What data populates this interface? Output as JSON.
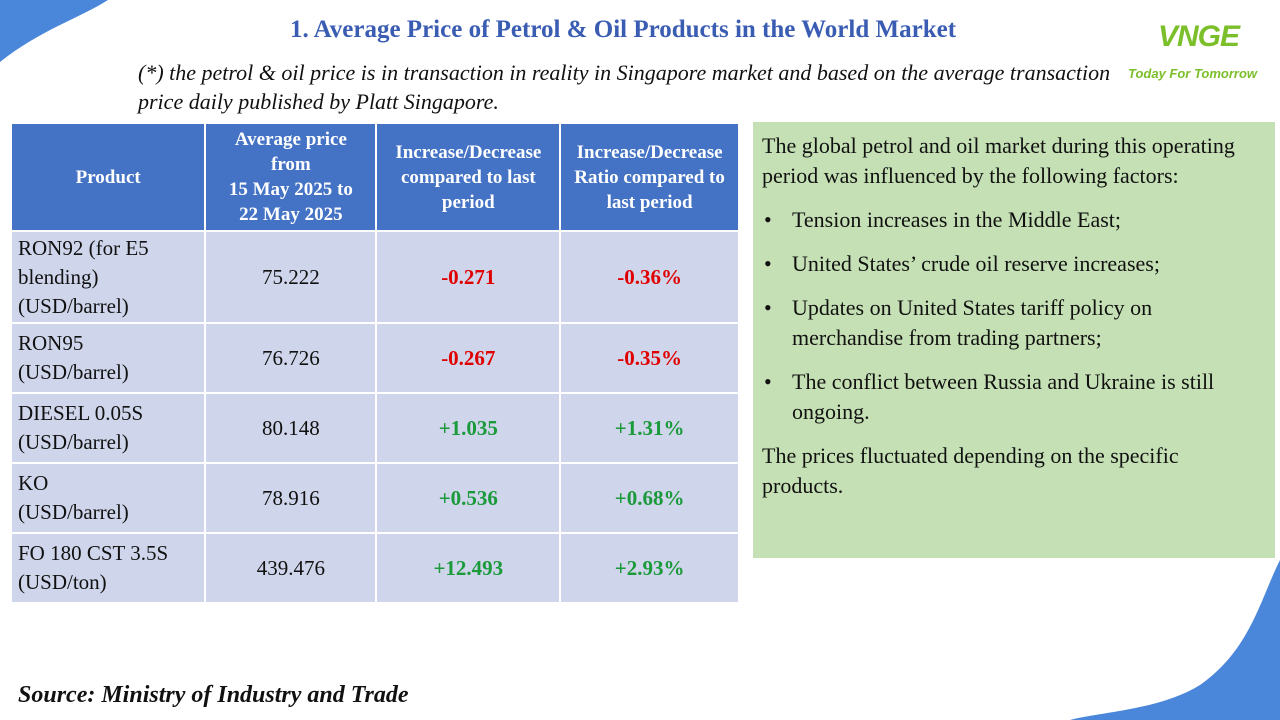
{
  "title": "1. Average Price of Petrol & Oil Products in the World Market",
  "note": "(*) the petrol & oil price is in transaction in reality in Singapore market and based on the average transaction price daily published by Platt Singapore.",
  "logo": {
    "mark_main": "VNGE",
    "tagline": "Today For Tomorrow"
  },
  "colors": {
    "title": "#3a5db3",
    "header_bg": "#4472c4",
    "row_bg": "#cfd5ea",
    "negative": "#e00000",
    "positive": "#1a9a3a",
    "factors_bg": "#c5e0b4",
    "logo": "#7bbf2a",
    "wave": "#4a86d9"
  },
  "table": {
    "headers": {
      "product": "Product",
      "avg_line1": "Average price",
      "avg_line2": "from",
      "avg_line3": "15 May 2025 to",
      "avg_line4": "22 May 2025",
      "change": "Increase/Decrease compared to last period",
      "ratio": "Increase/Decrease Ratio compared to last period"
    },
    "rows": [
      {
        "product_line1": "RON92 (for E5",
        "product_line2": "blending)",
        "product_line3": "(USD/barrel)",
        "avg": "75.222",
        "change": "-0.271",
        "ratio": "-0.36%"
      },
      {
        "product_line1": "RON95",
        "product_line2": "(USD/barrel)",
        "avg": "76.726",
        "change": "-0.267",
        "ratio": "-0.35%"
      },
      {
        "product_line1": "DIESEL 0.05S",
        "product_line2": "(USD/barrel)",
        "avg": "80.148",
        "change": "+1.035",
        "ratio": "+1.31%"
      },
      {
        "product_line1": "KO",
        "product_line2": "(USD/barrel)",
        "avg": "78.916",
        "change": "+0.536",
        "ratio": "+0.68%"
      },
      {
        "product_line1": "FO 180 CST 3.5S",
        "product_line2": "(USD/ton)",
        "avg": "439.476",
        "change": "+12.493",
        "ratio": "+2.93%"
      }
    ]
  },
  "factors": {
    "intro": "The global petrol and oil market during this operating period was influenced by the following factors:",
    "bullet_glyph": "•",
    "items": [
      "Tension increases in the Middle East;",
      "United States’ crude oil reserve increases;",
      "Updates on United States tariff policy on merchandise from trading partners;",
      "The conflict between Russia and Ukraine is still ongoing."
    ],
    "conclusion": "The prices fluctuated depending on the specific products."
  },
  "source": "Source: Ministry of Industry and Trade"
}
